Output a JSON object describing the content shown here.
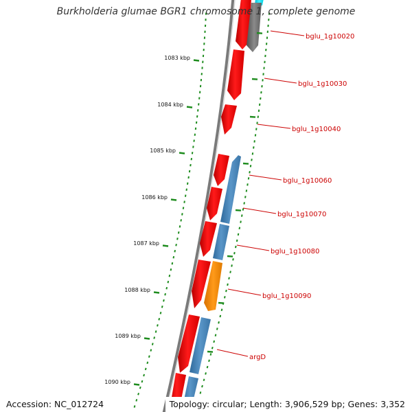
{
  "title": "Burkholderia glumae BGR1 chromosome 1, complete genome",
  "accession": "Accession: NC_012724",
  "topology": "Topology: circular; Length: 3,906,529 bp; Genes: 3,352",
  "colors": {
    "forward_strand_gene": "#ff0000",
    "reverse_strand_gene": "#4682b4",
    "highlight_gene": "#ff8c00",
    "gray_feature": "#6e6e6e",
    "cyan_feature": "#00e5ee",
    "backbone": "#808080",
    "ticks": "#1e8c1e",
    "label_leader": "#cc0000",
    "label_text": "#cc0000"
  },
  "scale": {
    "unit": "kbp",
    "tick_labels": [
      "1083 kbp",
      "1084 kbp",
      "1085 kbp",
      "1086 kbp",
      "1087 kbp",
      "1088 kbp",
      "1089 kbp",
      "1090 kbp"
    ]
  },
  "gene_labels": [
    "bglu_1g10020",
    "bglu_1g10030",
    "bglu_1g10040",
    "bglu_1g10060",
    "bglu_1g10070",
    "bglu_1g10080",
    "bglu_1g10090",
    "argD"
  ]
}
